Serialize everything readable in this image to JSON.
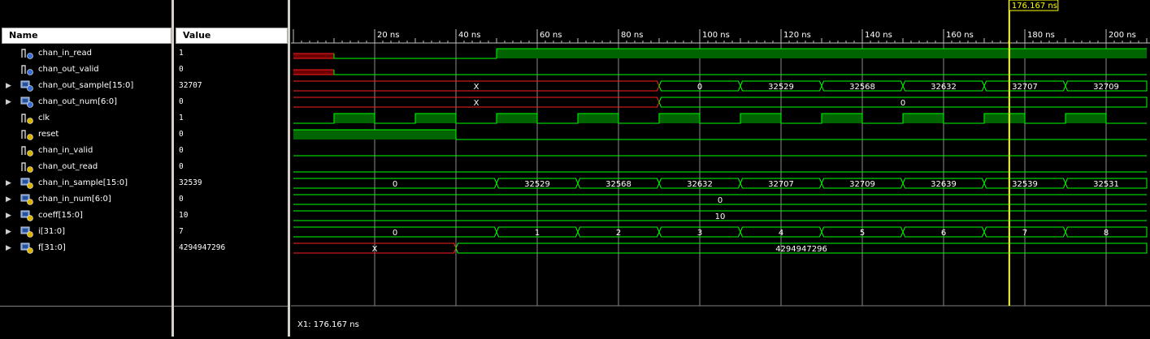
{
  "headers": {
    "name": "Name",
    "value": "Value"
  },
  "time_unit": "ns",
  "time_range": [
    0,
    210
  ],
  "tick_labels": [
    "20 ns",
    "40 ns",
    "60 ns",
    "80 ns",
    "100 ns",
    "120 ns",
    "140 ns",
    "160 ns",
    "180 ns",
    "200 ns"
  ],
  "cursor": {
    "label": "176.167 ns",
    "time": 176.167
  },
  "cursor_readout": "X1: 176.167 ns",
  "colors": {
    "bus": "#00ff00",
    "logic_fill": "#006400",
    "logic_line": "#00ff00",
    "undefined": "#ff2020",
    "undefined_fill": "#6e0000",
    "cursor": "#ffff00",
    "grid": "#c0c0c0",
    "text": "#ffffff"
  },
  "signals": [
    {
      "name": "chan_in_read",
      "value": "1",
      "kind": "logic",
      "icon": "wire-out-icon",
      "segments": [
        {
          "t0": 0,
          "t1": 10,
          "v": "U"
        },
        {
          "t0": 10,
          "t1": 50,
          "v": "0"
        },
        {
          "t0": 50,
          "t1": 210,
          "v": "1"
        }
      ]
    },
    {
      "name": "chan_out_valid",
      "value": "0",
      "kind": "logic",
      "icon": "wire-out-icon",
      "segments": [
        {
          "t0": 0,
          "t1": 10,
          "v": "U"
        },
        {
          "t0": 10,
          "t1": 210,
          "v": "0"
        }
      ]
    },
    {
      "name": "chan_out_sample[15:0]",
      "value": "32707",
      "kind": "bus",
      "icon": "bus-out-icon",
      "expandable": true,
      "segments": [
        {
          "t0": 0,
          "t1": 90,
          "v": "X",
          "undef": true
        },
        {
          "t0": 90,
          "t1": 110,
          "v": "0"
        },
        {
          "t0": 110,
          "t1": 130,
          "v": "32529"
        },
        {
          "t0": 130,
          "t1": 150,
          "v": "32568"
        },
        {
          "t0": 150,
          "t1": 170,
          "v": "32632"
        },
        {
          "t0": 170,
          "t1": 190,
          "v": "32707"
        },
        {
          "t0": 190,
          "t1": 210,
          "v": "32709"
        }
      ]
    },
    {
      "name": "chan_out_num[6:0]",
      "value": "0",
      "kind": "bus",
      "icon": "bus-out-icon",
      "expandable": true,
      "segments": [
        {
          "t0": 0,
          "t1": 90,
          "v": "X",
          "undef": true
        },
        {
          "t0": 90,
          "t1": 210,
          "v": "0"
        }
      ]
    },
    {
      "name": "clk",
      "value": "1",
      "kind": "clock",
      "icon": "wire-in-icon",
      "period": 20,
      "first_rise": 10
    },
    {
      "name": "reset",
      "value": "0",
      "kind": "logic",
      "icon": "wire-in-icon",
      "segments": [
        {
          "t0": 0,
          "t1": 40,
          "v": "1"
        },
        {
          "t0": 40,
          "t1": 210,
          "v": "0"
        }
      ]
    },
    {
      "name": "chan_in_valid",
      "value": "0",
      "kind": "logic",
      "icon": "wire-in-icon",
      "segments": [
        {
          "t0": 0,
          "t1": 210,
          "v": "0"
        }
      ]
    },
    {
      "name": "chan_out_read",
      "value": "0",
      "kind": "logic",
      "icon": "wire-in-icon",
      "segments": [
        {
          "t0": 0,
          "t1": 210,
          "v": "0"
        }
      ]
    },
    {
      "name": "chan_in_sample[15:0]",
      "value": "32539",
      "kind": "bus",
      "icon": "bus-in-icon",
      "expandable": true,
      "segments": [
        {
          "t0": 0,
          "t1": 50,
          "v": "0"
        },
        {
          "t0": 50,
          "t1": 70,
          "v": "32529"
        },
        {
          "t0": 70,
          "t1": 90,
          "v": "32568"
        },
        {
          "t0": 90,
          "t1": 110,
          "v": "32632"
        },
        {
          "t0": 110,
          "t1": 130,
          "v": "32707"
        },
        {
          "t0": 130,
          "t1": 150,
          "v": "32709"
        },
        {
          "t0": 150,
          "t1": 170,
          "v": "32639"
        },
        {
          "t0": 170,
          "t1": 190,
          "v": "32539"
        },
        {
          "t0": 190,
          "t1": 210,
          "v": "32531"
        }
      ]
    },
    {
      "name": "chan_in_num[6:0]",
      "value": "0",
      "kind": "bus",
      "icon": "bus-in-icon",
      "expandable": true,
      "segments": [
        {
          "t0": 0,
          "t1": 210,
          "v": "0"
        }
      ]
    },
    {
      "name": "coeff[15:0]",
      "value": "10",
      "kind": "bus",
      "icon": "bus-in-icon",
      "expandable": true,
      "segments": [
        {
          "t0": 0,
          "t1": 210,
          "v": "10"
        }
      ]
    },
    {
      "name": "i[31:0]",
      "value": "7",
      "kind": "bus",
      "icon": "bus-in-icon",
      "expandable": true,
      "segments": [
        {
          "t0": 0,
          "t1": 50,
          "v": "0"
        },
        {
          "t0": 50,
          "t1": 70,
          "v": "1"
        },
        {
          "t0": 70,
          "t1": 90,
          "v": "2"
        },
        {
          "t0": 90,
          "t1": 110,
          "v": "3"
        },
        {
          "t0": 110,
          "t1": 130,
          "v": "4"
        },
        {
          "t0": 130,
          "t1": 150,
          "v": "5"
        },
        {
          "t0": 150,
          "t1": 170,
          "v": "6"
        },
        {
          "t0": 170,
          "t1": 190,
          "v": "7"
        },
        {
          "t0": 190,
          "t1": 210,
          "v": "8"
        }
      ]
    },
    {
      "name": "f[31:0]",
      "value": "4294947296",
      "kind": "bus",
      "icon": "bus-in-icon",
      "expandable": true,
      "segments": [
        {
          "t0": 0,
          "t1": 40,
          "v": "X",
          "undef": true
        },
        {
          "t0": 40,
          "t1": 210,
          "v": "4294947296"
        }
      ]
    }
  ]
}
